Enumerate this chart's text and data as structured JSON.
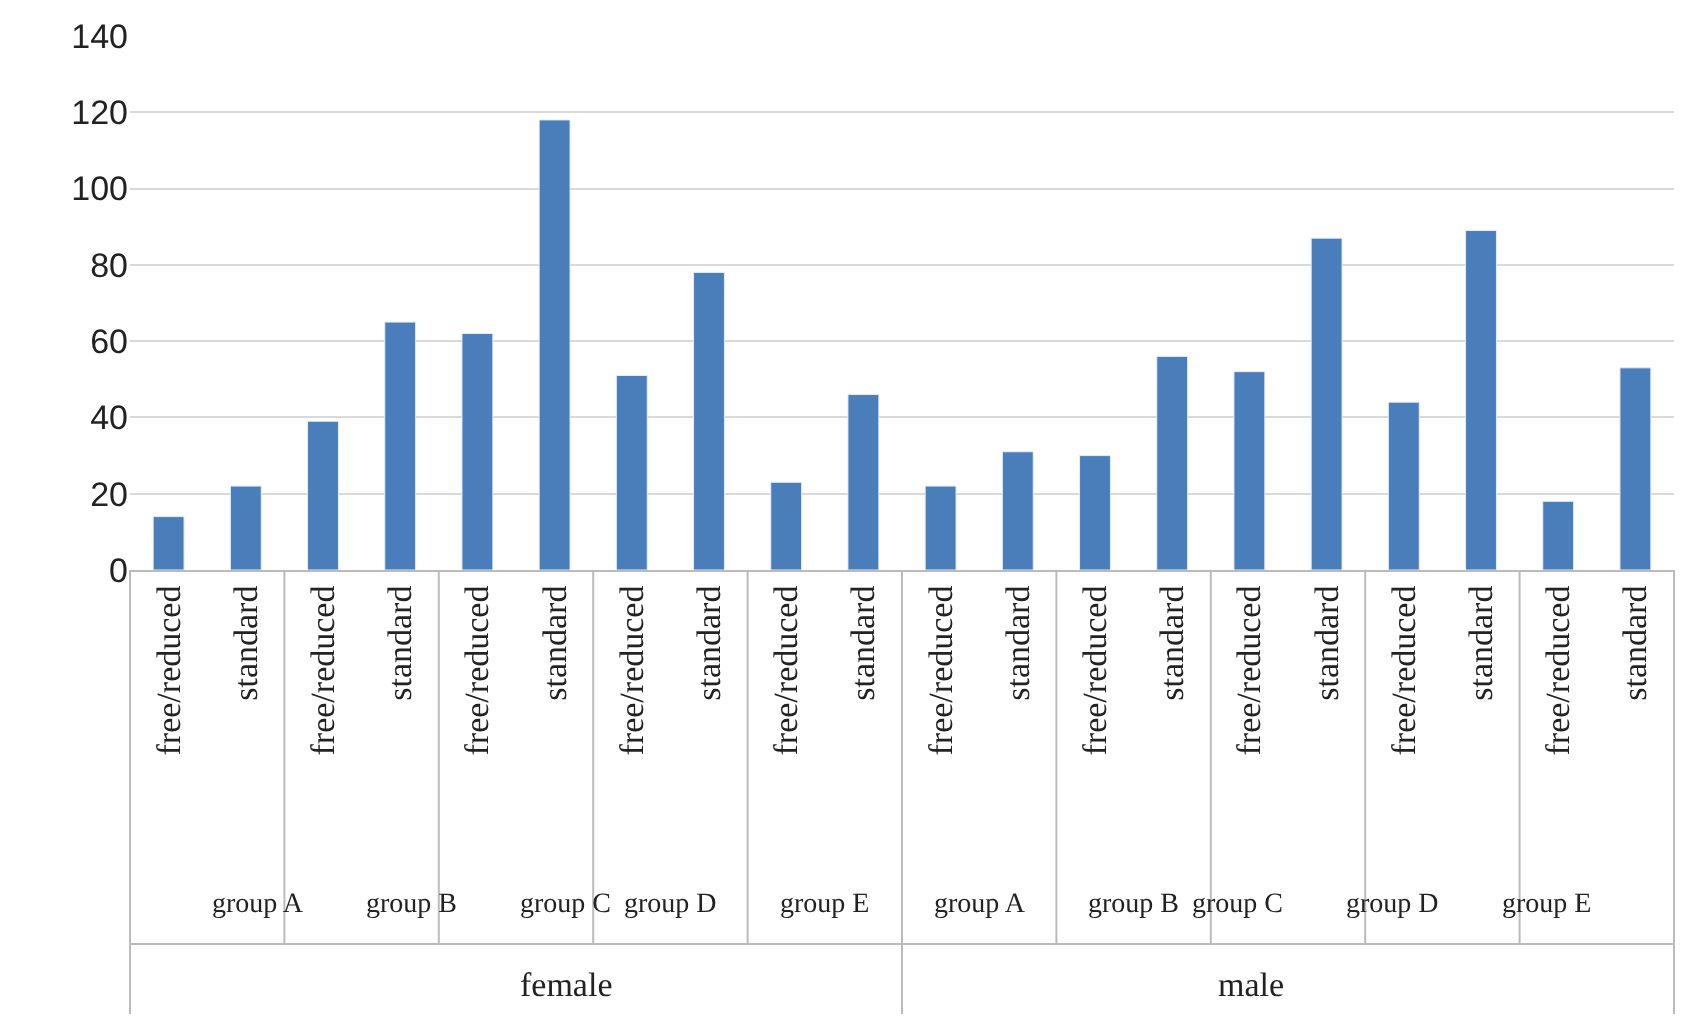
{
  "chart_data": {
    "type": "bar",
    "categories": [
      "free/reduced",
      "standard",
      "free/reduced",
      "standard",
      "free/reduced",
      "standard",
      "free/reduced",
      "standard",
      "free/reduced",
      "standard",
      "free/reduced",
      "standard",
      "free/reduced",
      "standard",
      "free/reduced",
      "standard",
      "free/reduced",
      "standard",
      "free/reduced",
      "standard"
    ],
    "values": [
      14,
      22,
      39,
      65,
      62,
      118,
      51,
      78,
      23,
      46,
      22,
      31,
      30,
      56,
      52,
      87,
      44,
      89,
      18,
      53
    ],
    "color": "#4a7ebb",
    "ylim": [
      0,
      140
    ],
    "yticks": [
      0,
      20,
      40,
      60,
      80,
      100,
      120,
      140
    ],
    "grid": "y",
    "legend": false,
    "annotations": [
      "group A",
      "group B",
      "group C",
      "group D",
      "group E",
      "group A",
      "group B",
      "group C",
      "group D",
      "group E",
      "female",
      "male"
    ]
  }
}
